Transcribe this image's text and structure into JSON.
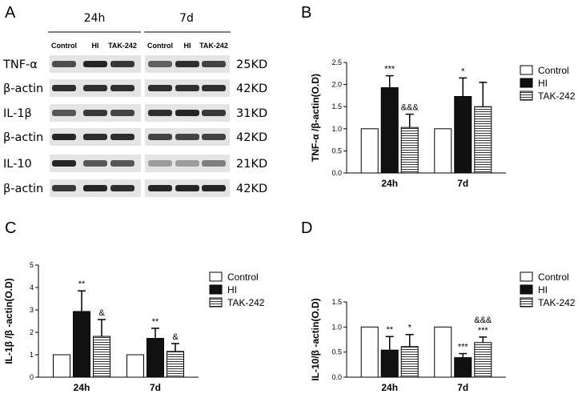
{
  "panel_letters": {
    "a": "A",
    "b": "B",
    "c": "C",
    "d": "D"
  },
  "western_blot": {
    "time_labels": [
      "24h",
      "7d"
    ],
    "lane_labels": [
      "Control",
      "HI",
      "TAK-242"
    ],
    "rows": [
      {
        "label": "TNF-α",
        "size": "25KD"
      },
      {
        "label": "β-actin",
        "size": "42KD"
      },
      {
        "label": "IL-1β",
        "size": "31KD"
      },
      {
        "label": "β-actin",
        "size": "42KD"
      },
      {
        "label": "IL-10",
        "size": "21KD"
      },
      {
        "label": "β-actin",
        "size": "42KD"
      }
    ]
  },
  "legend": [
    "Control",
    "HI",
    "TAK-242"
  ],
  "colors": {
    "control": "#ffffff",
    "hi": "#111111",
    "tak242": "#ffffff",
    "stroke": "#000000",
    "blot_bg": "#e4e4e4",
    "band": "#1a1a1a"
  },
  "chart_data": [
    {
      "id": "B",
      "type": "bar",
      "ylabel": "TNF-α /β-actin(O.D)",
      "ylim": [
        0,
        2.5
      ],
      "yticks": [
        "0.0",
        "0.5",
        "1.0",
        "1.5",
        "2.0",
        "2.5"
      ],
      "categories": [
        "24h",
        "7d"
      ],
      "series": [
        {
          "name": "Control",
          "values": [
            1.0,
            1.0
          ],
          "errors": [
            0,
            0
          ]
        },
        {
          "name": "HI",
          "values": [
            1.93,
            1.73
          ],
          "errors": [
            0.27,
            0.42
          ]
        },
        {
          "name": "TAK-242",
          "values": [
            1.03,
            1.5
          ],
          "errors": [
            0.3,
            0.55
          ]
        }
      ],
      "annotations": [
        {
          "category": 0,
          "series": 1,
          "text": "***"
        },
        {
          "category": 0,
          "series": 2,
          "text": "&&&"
        },
        {
          "category": 1,
          "series": 1,
          "text": "*"
        }
      ]
    },
    {
      "id": "C",
      "type": "bar",
      "ylabel": "IL-1β /β -actin(O.D)",
      "ylim": [
        0,
        5
      ],
      "yticks": [
        "0",
        "1",
        "2",
        "3",
        "4",
        "5"
      ],
      "categories": [
        "24h",
        "7d"
      ],
      "series": [
        {
          "name": "Control",
          "values": [
            1.0,
            1.0
          ],
          "errors": [
            0,
            0
          ]
        },
        {
          "name": "HI",
          "values": [
            2.93,
            1.73
          ],
          "errors": [
            0.92,
            0.45
          ]
        },
        {
          "name": "TAK-242",
          "values": [
            1.82,
            1.15
          ],
          "errors": [
            0.75,
            0.35
          ]
        }
      ],
      "annotations": [
        {
          "category": 0,
          "series": 1,
          "text": "**"
        },
        {
          "category": 0,
          "series": 2,
          "text": "&"
        },
        {
          "category": 1,
          "series": 1,
          "text": "**"
        },
        {
          "category": 1,
          "series": 2,
          "text": "&"
        }
      ]
    },
    {
      "id": "D",
      "type": "bar",
      "ylabel": "IL-10/β -actin(O.D)",
      "ylim": [
        0,
        1.5
      ],
      "yticks": [
        "0.0",
        "0.5",
        "1.0",
        "1.5"
      ],
      "categories": [
        "24h",
        "7d"
      ],
      "series": [
        {
          "name": "Control",
          "values": [
            1.0,
            1.0
          ],
          "errors": [
            0,
            0
          ]
        },
        {
          "name": "HI",
          "values": [
            0.54,
            0.39
          ],
          "errors": [
            0.27,
            0.08
          ]
        },
        {
          "name": "TAK-242",
          "values": [
            0.61,
            0.69
          ],
          "errors": [
            0.24,
            0.11
          ]
        }
      ],
      "annotations": [
        {
          "category": 0,
          "series": 1,
          "text": "**"
        },
        {
          "category": 0,
          "series": 2,
          "text": "*"
        },
        {
          "category": 1,
          "series": 1,
          "text": "***"
        },
        {
          "category": 1,
          "series": 2,
          "text": "***"
        },
        {
          "category": 1,
          "series": 2,
          "text": "&&&"
        }
      ]
    }
  ]
}
